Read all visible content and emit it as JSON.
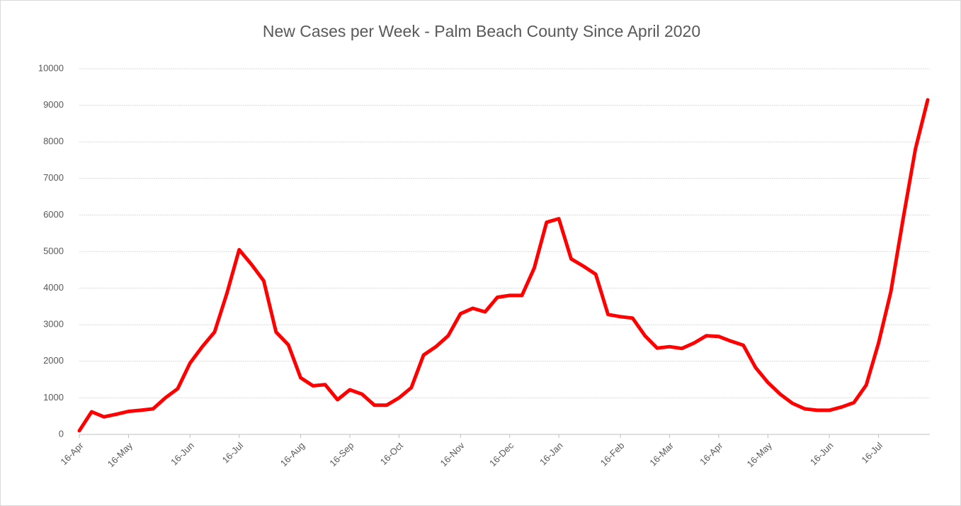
{
  "chart_data": {
    "type": "line",
    "title": "New Cases per Week - Palm Beach County Since April 2020",
    "categories": [
      "16-Apr",
      null,
      null,
      null,
      "16-May",
      null,
      null,
      null,
      null,
      "16-Jun",
      null,
      null,
      null,
      "16-Jul",
      null,
      null,
      null,
      null,
      "16-Aug",
      null,
      null,
      null,
      "16-Sep",
      null,
      null,
      null,
      "16-Oct",
      null,
      null,
      null,
      null,
      "16-Nov",
      null,
      null,
      null,
      "16-Dec",
      null,
      null,
      null,
      "16-Jan",
      null,
      null,
      null,
      null,
      "16-Feb",
      null,
      null,
      null,
      "16-Mar",
      null,
      null,
      null,
      "16-Apr",
      null,
      null,
      null,
      "16-May",
      null,
      null,
      null,
      null,
      "16-Jun",
      null,
      null,
      null,
      "16-Jul",
      null,
      null,
      null,
      null
    ],
    "values": [
      100,
      620,
      480,
      550,
      630,
      660,
      700,
      1000,
      1250,
      1950,
      2400,
      2800,
      3850,
      5050,
      4650,
      4200,
      2800,
      2450,
      1550,
      1330,
      1360,
      950,
      1220,
      1100,
      800,
      800,
      1000,
      1280,
      2170,
      2400,
      2700,
      3300,
      3450,
      3350,
      3750,
      3800,
      3800,
      4550,
      5800,
      5900,
      4800,
      4600,
      4380,
      3280,
      3220,
      3180,
      2700,
      2360,
      2400,
      2350,
      2500,
      2700,
      2680,
      2550,
      2440,
      1830,
      1420,
      1100,
      850,
      700,
      660,
      660,
      750,
      870,
      1350,
      2500,
      3900,
      5900,
      7800,
      9150
    ],
    "color": "#ff0000",
    "ylim": [
      0,
      10000
    ],
    "yticks": [
      0,
      1000,
      2000,
      3000,
      4000,
      5000,
      6000,
      7000,
      8000,
      9000,
      10000
    ],
    "grid": true
  }
}
